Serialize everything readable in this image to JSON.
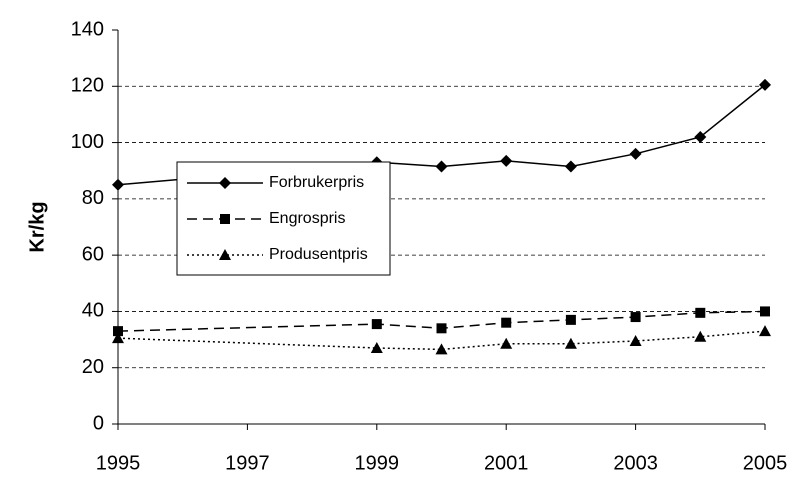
{
  "chart_data": {
    "type": "line",
    "y_label": "Kr/kg",
    "x": [
      1995,
      1999,
      2000,
      2001,
      2002,
      2003,
      2004,
      2005
    ],
    "series": [
      {
        "name": "Forbrukerpris",
        "color": "#000000",
        "line_style": "solid",
        "marker": "diamond",
        "values": [
          85,
          93,
          91.5,
          93.5,
          91.5,
          96,
          102,
          120.5
        ]
      },
      {
        "name": "Engrospris",
        "color": "#000000",
        "line_style": "dashed",
        "marker": "square",
        "values": [
          33,
          35.5,
          34,
          36,
          37,
          38,
          39.5,
          40
        ]
      },
      {
        "name": "Produsentpris",
        "color": "#000000",
        "line_style": "dotted",
        "marker": "triangle",
        "values": [
          30.5,
          27,
          26.5,
          28.5,
          28.5,
          29.5,
          31,
          33
        ]
      }
    ],
    "xlim": [
      1995,
      2005
    ],
    "xticks": [
      1995,
      1997,
      1999,
      2001,
      2003,
      2005
    ],
    "ylim": [
      0,
      140
    ],
    "yticks": [
      0,
      20,
      40,
      60,
      80,
      100,
      120,
      140
    ],
    "grid": true,
    "legend": "center-left"
  }
}
